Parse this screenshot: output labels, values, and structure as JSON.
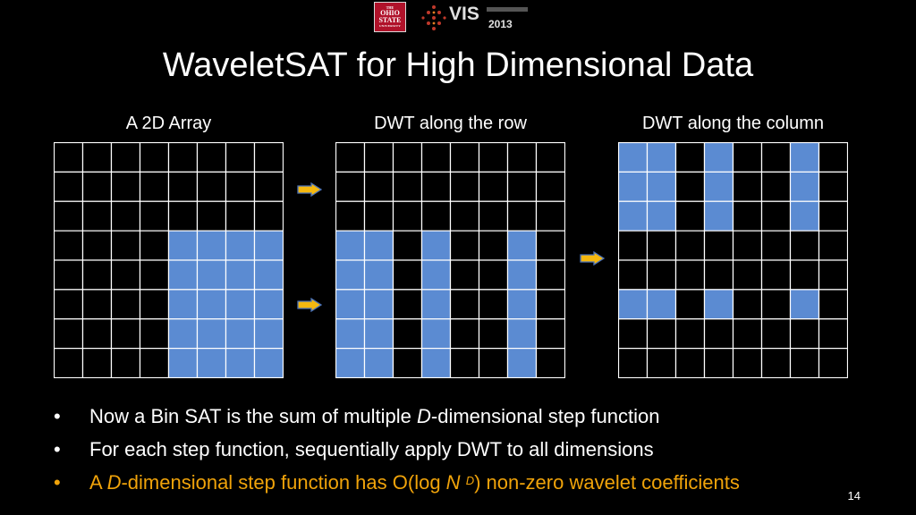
{
  "header": {
    "osu_logo": {
      "the": "THE",
      "line1": "OHIO",
      "line2": "STATE",
      "line3": "UNIVERSITY"
    },
    "vis_logo": {
      "text": "VIS",
      "year": "2013"
    }
  },
  "title": "WaveletSAT for High Dimensional Data",
  "grids": [
    {
      "label": "A 2D Array",
      "cells": [
        [
          0,
          0,
          0,
          0,
          0,
          0,
          0,
          0
        ],
        [
          0,
          0,
          0,
          0,
          0,
          0,
          0,
          0
        ],
        [
          0,
          0,
          0,
          0,
          0,
          0,
          0,
          0
        ],
        [
          0,
          0,
          0,
          0,
          1,
          1,
          1,
          1
        ],
        [
          0,
          0,
          0,
          0,
          1,
          1,
          1,
          1
        ],
        [
          0,
          0,
          0,
          0,
          1,
          1,
          1,
          1
        ],
        [
          0,
          0,
          0,
          0,
          1,
          1,
          1,
          1
        ],
        [
          0,
          0,
          0,
          0,
          1,
          1,
          1,
          1
        ]
      ]
    },
    {
      "label": "DWT along the row",
      "cells": [
        [
          0,
          0,
          0,
          0,
          0,
          0,
          0,
          0
        ],
        [
          0,
          0,
          0,
          0,
          0,
          0,
          0,
          0
        ],
        [
          0,
          0,
          0,
          0,
          0,
          0,
          0,
          0
        ],
        [
          1,
          1,
          0,
          1,
          0,
          0,
          1,
          0
        ],
        [
          1,
          1,
          0,
          1,
          0,
          0,
          1,
          0
        ],
        [
          1,
          1,
          0,
          1,
          0,
          0,
          1,
          0
        ],
        [
          1,
          1,
          0,
          1,
          0,
          0,
          1,
          0
        ],
        [
          1,
          1,
          0,
          1,
          0,
          0,
          1,
          0
        ]
      ]
    },
    {
      "label": "DWT along the column",
      "cells": [
        [
          1,
          1,
          0,
          1,
          0,
          0,
          1,
          0
        ],
        [
          1,
          1,
          0,
          1,
          0,
          0,
          1,
          0
        ],
        [
          1,
          1,
          0,
          1,
          0,
          0,
          1,
          0
        ],
        [
          0,
          0,
          0,
          0,
          0,
          0,
          0,
          0
        ],
        [
          0,
          0,
          0,
          0,
          0,
          0,
          0,
          0
        ],
        [
          1,
          1,
          0,
          1,
          0,
          0,
          1,
          0
        ],
        [
          0,
          0,
          0,
          0,
          0,
          0,
          0,
          0
        ],
        [
          0,
          0,
          0,
          0,
          0,
          0,
          0,
          0
        ]
      ]
    }
  ],
  "colors": {
    "cell_fill": "#5b8bd2",
    "grid_line": "#ffffff",
    "arrow_fill": "#f5b80f",
    "arrow_stroke": "#4a72b8",
    "highlight": "#f0a30a"
  },
  "bullets": [
    {
      "marker": "•",
      "parts": [
        "Now a Bin SAT is the sum of multiple ",
        "D",
        "-dimensional step function"
      ]
    },
    {
      "marker": "•",
      "text": "For each step function, sequentially apply DWT to all dimensions"
    },
    {
      "marker": "•",
      "parts": [
        "A ",
        "D",
        "-dimensional step function has O(log ",
        "N",
        " ",
        "D",
        ") non-zero wavelet coefficients"
      ]
    }
  ],
  "page_number": "14"
}
